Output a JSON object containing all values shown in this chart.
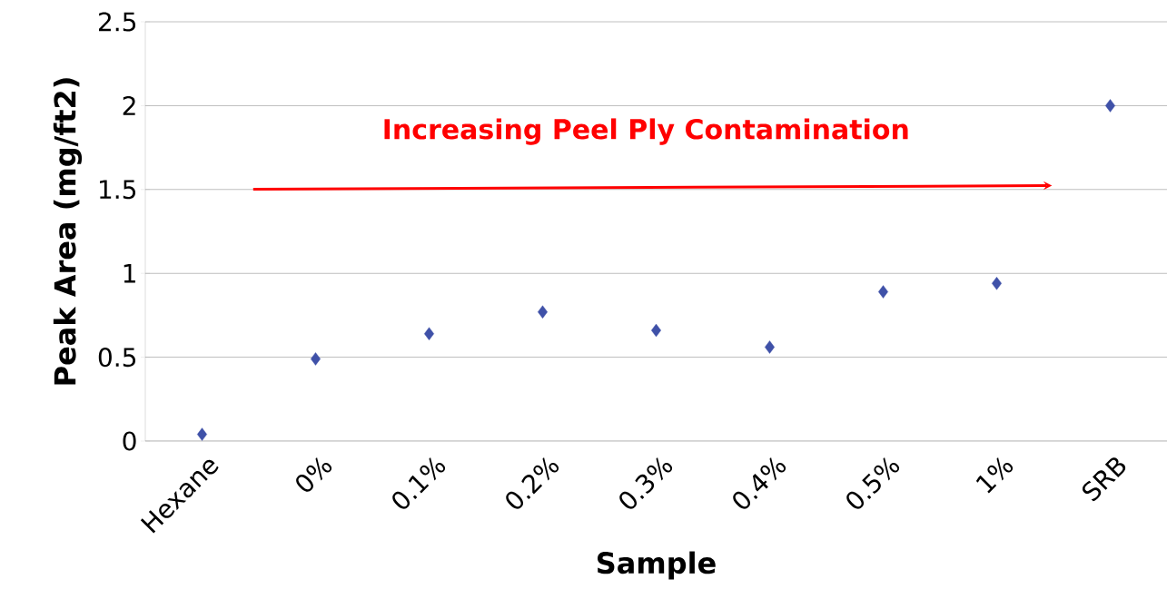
{
  "chart_data": {
    "type": "scatter",
    "xlabel": "Sample",
    "ylabel": "Peak Area (mg/ft2)",
    "categories": [
      "Hexane",
      "0%",
      "0.1%",
      "0.2%",
      "0.3%",
      "0.4%",
      "0.5%",
      "1%",
      "SRB"
    ],
    "values": [
      0.04,
      0.49,
      0.64,
      0.77,
      0.66,
      0.56,
      0.89,
      0.94,
      2.0
    ],
    "color": "#3f51a8",
    "marker": "diamond",
    "ylim": [
      0,
      2.5
    ],
    "yticks": [
      0,
      {
        "value": 0.5,
        "label": "0.5"
      },
      1,
      {
        "value": 1.5,
        "label": "1.5"
      },
      2,
      {
        "value": 2.5,
        "label": "2.5"
      }
    ],
    "grid": "y",
    "annotations": [
      "Increasing Peel Ply Contamination"
    ]
  }
}
